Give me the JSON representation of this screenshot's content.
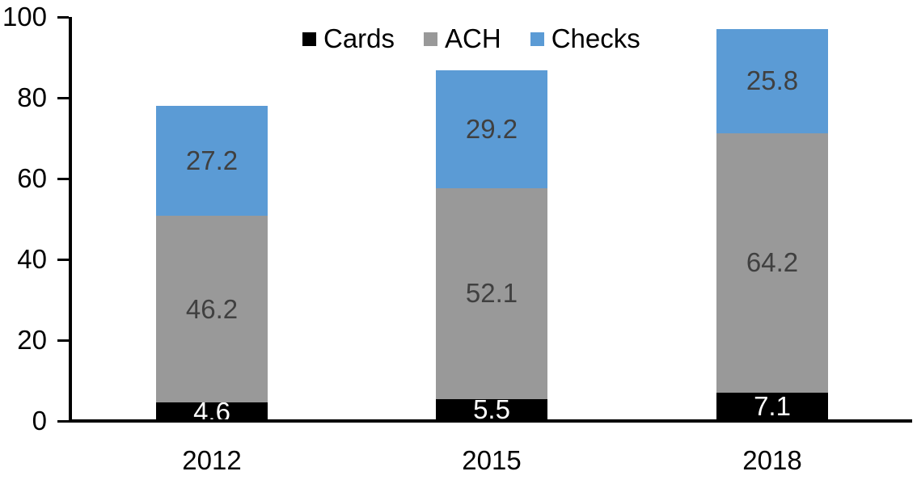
{
  "chart_data": {
    "type": "bar",
    "stacked": true,
    "title": "",
    "xlabel": "",
    "ylabel": "",
    "categories": [
      "2012",
      "2015",
      "2018"
    ],
    "series": [
      {
        "name": "Cards",
        "color": "#000000",
        "label_color": "#ffffff",
        "values": [
          4.6,
          5.5,
          7.1
        ]
      },
      {
        "name": "ACH",
        "color": "#999999",
        "label_color": "#404040",
        "values": [
          46.2,
          52.1,
          64.2
        ]
      },
      {
        "name": "Checks",
        "color": "#5B9BD5",
        "label_color": "#404040",
        "values": [
          27.2,
          29.2,
          25.8
        ]
      }
    ],
    "bar_totals": [
      78.0,
      86.8,
      97.1
    ],
    "ylim": [
      0,
      100
    ],
    "yticks": [
      0,
      20,
      40,
      60,
      80,
      100
    ],
    "grid": false,
    "legend_position": "top-center",
    "legend_entries": [
      "Cards",
      "ACH",
      "Checks"
    ],
    "axis_color": "#000000",
    "background_color": "#ffffff"
  }
}
